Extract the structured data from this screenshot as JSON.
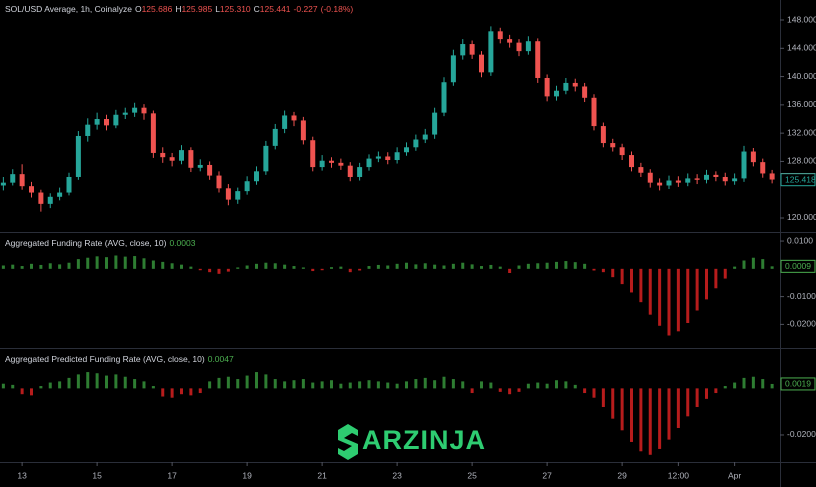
{
  "chart_data": [
    {
      "type": "candlestick",
      "symbol": "SOL/USD Average, 1h, Coinalyze",
      "ohlc": [
        {
          "key": "O",
          "value": 125.686,
          "label": "125.686"
        },
        {
          "key": "H",
          "value": 125.985,
          "label": "125.985"
        },
        {
          "key": "L",
          "value": 125.31,
          "label": "125.310"
        },
        {
          "key": "C",
          "value": 125.441,
          "label": "125.441"
        }
      ],
      "change": {
        "value": -0.227,
        "label": "-0.227"
      },
      "change_pct": {
        "value": -0.18,
        "label": "(-0.18%)"
      },
      "up_color": "#26a69a",
      "down_color": "#ef5350",
      "x": [
        12.5,
        12.75,
        13,
        13.25,
        13.5,
        13.75,
        14,
        14.25,
        14.5,
        14.75,
        15,
        15.25,
        15.5,
        15.75,
        16,
        16.25,
        16.5,
        16.75,
        17,
        17.25,
        17.5,
        17.75,
        18,
        18.25,
        18.5,
        18.75,
        19,
        19.25,
        19.5,
        19.75,
        20,
        20.25,
        20.5,
        20.75,
        21,
        21.25,
        21.5,
        21.75,
        22,
        22.25,
        22.5,
        22.75,
        23,
        23.25,
        23.5,
        23.75,
        24,
        24.25,
        24.5,
        24.75,
        25,
        25.25,
        25.5,
        25.75,
        26,
        26.25,
        26.5,
        26.75,
        27,
        27.25,
        27.5,
        27.75,
        28,
        28.25,
        28.5,
        28.75,
        29,
        29.25,
        29.5,
        29.75,
        30,
        30.25,
        30.5,
        30.75,
        31,
        31.25,
        31.5,
        31.75,
        32,
        32.25,
        32.5,
        32.75,
        33
      ],
      "open": [
        124.6,
        125.0,
        126.2,
        124.5,
        123.6,
        122.0,
        123.0,
        123.6,
        125.8,
        131.6,
        133.2,
        134.0,
        133.1,
        134.6,
        134.9,
        135.6,
        134.8,
        129.2,
        128.6,
        128.1,
        129.6,
        127.1,
        127.5,
        126.0,
        124.2,
        122.6,
        123.8,
        125.2,
        126.6,
        130.2,
        132.6,
        134.5,
        133.8,
        131.0,
        127.2,
        128.1,
        127.8,
        127.4,
        125.8,
        127.2,
        128.4,
        128.7,
        128.2,
        129.3,
        130.0,
        131.1,
        131.8,
        134.9,
        139.2,
        143.0,
        144.6,
        143.1,
        140.6,
        146.4,
        145.3,
        144.8,
        143.6,
        145.0,
        139.8,
        137.2,
        138.0,
        139.1,
        138.6,
        137.0,
        133.0,
        130.6,
        130.0,
        128.9,
        127.2,
        126.4,
        125.0,
        124.6,
        125.3,
        125.0,
        125.6,
        125.4,
        126.1,
        125.8,
        125.2,
        125.6,
        129.4,
        127.9,
        126.3
      ],
      "high": [
        125.8,
        126.9,
        127.6,
        125.1,
        124.0,
        123.5,
        124.3,
        126.4,
        132.3,
        134.1,
        134.9,
        134.6,
        135.3,
        135.6,
        136.3,
        136.1,
        135.2,
        130.0,
        129.2,
        130.3,
        130.0,
        128.3,
        128.0,
        126.6,
        124.8,
        124.3,
        125.9,
        127.3,
        130.9,
        133.3,
        135.2,
        135.0,
        134.3,
        131.5,
        128.9,
        128.6,
        128.4,
        127.9,
        127.8,
        129.0,
        129.4,
        129.3,
        130.0,
        130.7,
        131.8,
        132.6,
        135.6,
        139.9,
        143.8,
        145.3,
        145.1,
        143.6,
        147.1,
        146.9,
        145.9,
        145.3,
        145.7,
        145.4,
        140.3,
        138.7,
        139.8,
        139.7,
        139.1,
        137.5,
        133.5,
        131.2,
        130.5,
        129.4,
        127.8,
        126.9,
        125.6,
        126.0,
        125.9,
        126.3,
        126.2,
        126.8,
        126.6,
        126.4,
        126.3,
        130.2,
        129.9,
        128.4,
        126.8
      ],
      "low": [
        123.9,
        124.6,
        124.0,
        122.9,
        120.9,
        121.4,
        122.5,
        123.2,
        125.4,
        130.8,
        132.5,
        132.4,
        132.7,
        134.0,
        134.3,
        133.9,
        128.5,
        127.8,
        127.3,
        127.6,
        126.5,
        126.6,
        125.4,
        123.6,
        121.8,
        122.0,
        123.3,
        124.7,
        126.1,
        129.7,
        132.0,
        133.0,
        130.4,
        126.6,
        126.7,
        127.1,
        126.8,
        125.2,
        125.3,
        126.7,
        127.9,
        127.6,
        127.7,
        128.8,
        129.5,
        130.6,
        131.2,
        134.4,
        138.7,
        142.4,
        142.5,
        139.9,
        140.1,
        144.7,
        144.1,
        142.9,
        143.1,
        139.1,
        136.5,
        136.6,
        137.5,
        137.9,
        136.4,
        132.4,
        130.0,
        129.4,
        128.2,
        126.6,
        125.8,
        124.3,
        123.9,
        124.1,
        124.4,
        124.5,
        124.8,
        124.9,
        125.2,
        124.6,
        124.7,
        125.1,
        127.3,
        125.7,
        124.9
      ],
      "close": [
        125.0,
        126.2,
        124.5,
        123.6,
        122.0,
        123.0,
        123.6,
        125.8,
        131.6,
        133.2,
        134.0,
        133.1,
        134.6,
        134.9,
        135.6,
        134.8,
        129.2,
        128.6,
        128.1,
        129.6,
        127.1,
        127.5,
        126.0,
        124.2,
        122.6,
        123.8,
        125.2,
        126.6,
        130.2,
        132.6,
        134.5,
        133.8,
        131.0,
        127.2,
        128.1,
        127.8,
        127.4,
        125.8,
        127.2,
        128.4,
        128.7,
        128.2,
        129.3,
        130.0,
        131.1,
        131.8,
        134.9,
        139.2,
        143.0,
        144.6,
        143.1,
        140.6,
        146.4,
        145.3,
        144.8,
        143.6,
        145.0,
        139.8,
        137.2,
        138.0,
        139.1,
        138.6,
        137.0,
        133.0,
        130.6,
        130.0,
        128.9,
        127.2,
        126.4,
        125.0,
        124.6,
        125.3,
        125.0,
        125.6,
        125.4,
        126.1,
        125.8,
        125.2,
        125.6,
        129.4,
        127.9,
        126.3,
        125.441
      ],
      "xlim": [
        12.41,
        33.21
      ],
      "ylim": [
        118.02,
        150.83
      ],
      "yticks": [
        {
          "value": 120,
          "label": "120.000"
        },
        {
          "value": 128,
          "label": "128.000"
        },
        {
          "value": 132,
          "label": "132.000"
        },
        {
          "value": 136,
          "label": "136.000"
        },
        {
          "value": 140,
          "label": "140.000"
        },
        {
          "value": 144,
          "label": "144.000"
        },
        {
          "value": 148,
          "label": "148.000"
        }
      ],
      "badges": [
        {
          "value": 125.441,
          "label": "125.441",
          "color": "#ef5350",
          "filled": true
        },
        {
          "value": 125.418,
          "label": "125.418",
          "color": "#26a69a",
          "filled": false
        }
      ]
    },
    {
      "type": "histogram",
      "title": "Aggregated Funding Rate (AVG, close, 10)",
      "current": {
        "value": 0.0003,
        "label": "0.0003"
      },
      "up_color": "#2e7d32",
      "down_color": "#b71c1c",
      "x": [
        12.5,
        12.75,
        13,
        13.25,
        13.5,
        13.75,
        14,
        14.25,
        14.5,
        14.75,
        15,
        15.25,
        15.5,
        15.75,
        16,
        16.25,
        16.5,
        16.75,
        17,
        17.25,
        17.5,
        17.75,
        18,
        18.25,
        18.5,
        18.75,
        19,
        19.25,
        19.5,
        19.75,
        20,
        20.25,
        20.5,
        20.75,
        21,
        21.25,
        21.5,
        21.75,
        22,
        22.25,
        22.5,
        22.75,
        23,
        23.25,
        23.5,
        23.75,
        24,
        24.25,
        24.5,
        24.75,
        25,
        25.25,
        25.5,
        25.75,
        26,
        26.25,
        26.5,
        26.75,
        27,
        27.25,
        27.5,
        27.75,
        28,
        28.25,
        28.5,
        28.75,
        29,
        29.25,
        29.5,
        29.75,
        30,
        30.25,
        30.5,
        30.75,
        31,
        31.25,
        31.5,
        31.75,
        32,
        32.25,
        32.5,
        32.75,
        33
      ],
      "values": [
        0.0012,
        0.0015,
        0.001,
        0.0018,
        0.0014,
        0.002,
        0.0016,
        0.0022,
        0.0035,
        0.004,
        0.0045,
        0.0042,
        0.0048,
        0.0044,
        0.0046,
        0.0038,
        0.003,
        0.0025,
        0.002,
        0.0015,
        0.0008,
        -0.0005,
        -0.0012,
        -0.0018,
        -0.001,
        0.0005,
        0.0012,
        0.0018,
        0.0022,
        0.002,
        0.0015,
        0.001,
        0.0005,
        -0.0008,
        -0.0005,
        0.0006,
        0.0008,
        -0.0012,
        -0.0006,
        0.001,
        0.0014,
        0.0012,
        0.0018,
        0.0022,
        0.0016,
        0.002,
        0.0015,
        0.0012,
        0.0018,
        0.0022,
        0.0016,
        0.001,
        0.0014,
        0.0008,
        -0.0015,
        0.0012,
        0.0018,
        0.002,
        0.0022,
        0.0025,
        0.0028,
        0.0024,
        0.0018,
        -0.0006,
        -0.0012,
        -0.003,
        -0.0055,
        -0.0085,
        -0.012,
        -0.0165,
        -0.0205,
        -0.024,
        -0.0225,
        -0.0195,
        -0.015,
        -0.011,
        -0.007,
        -0.0035,
        0.0008,
        0.003,
        0.004,
        0.0035,
        0.0009
      ],
      "xlim": [
        12.41,
        33.21
      ],
      "ylim": [
        -0.0285,
        0.0129
      ],
      "yticks": [
        {
          "value": 0.01,
          "label": "0.0100"
        },
        {
          "value": -0.01,
          "label": "-0.0100"
        },
        {
          "value": -0.02,
          "label": "-0.0200"
        }
      ],
      "badges": [
        {
          "value": 0.0009,
          "label": "0.0009",
          "color": "#4caf50",
          "filled": false
        }
      ]
    },
    {
      "type": "histogram",
      "title": "Aggregated Predicted Funding Rate (AVG, close, 10)",
      "current": {
        "value": 0.0047,
        "label": "0.0047"
      },
      "up_color": "#2e7d32",
      "down_color": "#b71c1c",
      "x": [
        12.5,
        12.75,
        13,
        13.25,
        13.5,
        13.75,
        14,
        14.25,
        14.5,
        14.75,
        15,
        15.25,
        15.5,
        15.75,
        16,
        16.25,
        16.5,
        16.75,
        17,
        17.25,
        17.5,
        17.75,
        18,
        18.25,
        18.5,
        18.75,
        19,
        19.25,
        19.5,
        19.75,
        20,
        20.25,
        20.5,
        20.75,
        21,
        21.25,
        21.5,
        21.75,
        22,
        22.25,
        22.5,
        22.75,
        23,
        23.25,
        23.5,
        23.75,
        24,
        24.25,
        24.5,
        24.75,
        25,
        25.25,
        25.5,
        25.75,
        26,
        26.25,
        26.5,
        26.75,
        27,
        27.25,
        27.5,
        27.75,
        28,
        28.25,
        28.5,
        28.75,
        29,
        29.25,
        29.5,
        29.75,
        30,
        30.25,
        30.5,
        30.75,
        31,
        31.25,
        31.5,
        31.75,
        32,
        32.25,
        32.5,
        32.75,
        33
      ],
      "values": [
        0.002,
        0.0015,
        -0.0025,
        -0.003,
        0.001,
        0.0025,
        0.003,
        0.0045,
        0.006,
        0.007,
        0.0065,
        0.0055,
        0.006,
        0.005,
        0.004,
        0.003,
        0.001,
        -0.0035,
        -0.004,
        -0.0025,
        -0.003,
        -0.002,
        0.003,
        0.0045,
        0.005,
        0.004,
        0.0055,
        0.007,
        0.006,
        0.004,
        0.003,
        0.0035,
        0.004,
        0.0025,
        0.003,
        0.0035,
        0.002,
        0.0025,
        0.003,
        0.0035,
        0.003,
        0.0025,
        0.002,
        0.003,
        0.004,
        0.0045,
        0.0035,
        0.005,
        0.004,
        0.003,
        -0.002,
        0.003,
        0.0025,
        -0.0015,
        -0.0025,
        -0.0015,
        0.002,
        0.0025,
        0.002,
        0.0035,
        0.003,
        0.0015,
        -0.002,
        -0.004,
        -0.008,
        -0.013,
        -0.018,
        -0.023,
        -0.027,
        -0.0285,
        -0.026,
        -0.022,
        -0.017,
        -0.012,
        -0.008,
        -0.0045,
        -0.002,
        0.001,
        0.0025,
        0.0045,
        0.005,
        0.004,
        0.0019
      ],
      "xlim": [
        12.41,
        33.21
      ],
      "ylim": [
        -0.0316,
        0.0169
      ],
      "yticks": [
        {
          "value": -0.02,
          "label": "-0.0200"
        }
      ],
      "badges": [
        {
          "value": 0.0019,
          "label": "0.0019",
          "color": "#4caf50",
          "filled": false
        }
      ],
      "xticks": [
        13,
        15,
        17,
        19,
        21,
        23,
        25,
        27,
        29,
        {
          "value": 30.5,
          "label": "12:00"
        },
        {
          "value": 32,
          "label": "Apr"
        }
      ]
    }
  ],
  "watermark": "ARZINJA"
}
